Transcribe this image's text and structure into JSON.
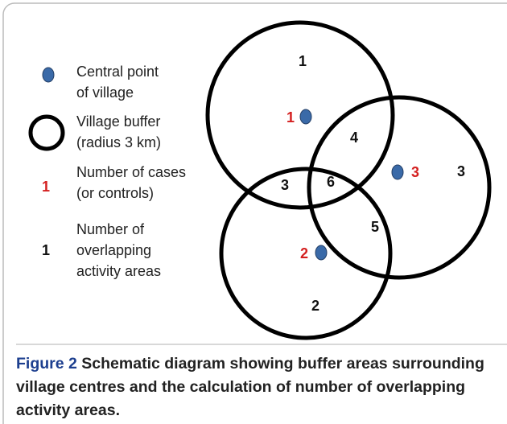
{
  "legend": [
    {
      "symbol": "village-centre",
      "lines": [
        "Central point",
        "of village"
      ]
    },
    {
      "symbol": "buffer",
      "lines": [
        "Village buffer",
        "(radius 3 km)"
      ]
    },
    {
      "symbol_text": "1",
      "lines": [
        "Number of cases",
        "(or controls)"
      ]
    },
    {
      "symbol_text": "1",
      "lines": [
        "Number of",
        "overlapping",
        "activity areas"
      ]
    }
  ],
  "villages": [
    {
      "label": "1"
    },
    {
      "label": "2"
    },
    {
      "label": "3"
    }
  ],
  "regions": [
    "1",
    "4",
    "3",
    "6",
    "3",
    "5",
    "2"
  ],
  "caption": {
    "label": "Figure 2",
    "text": "Schematic diagram showing buffer areas surrounding village centres and the calculation of number of overlapping activity areas."
  }
}
